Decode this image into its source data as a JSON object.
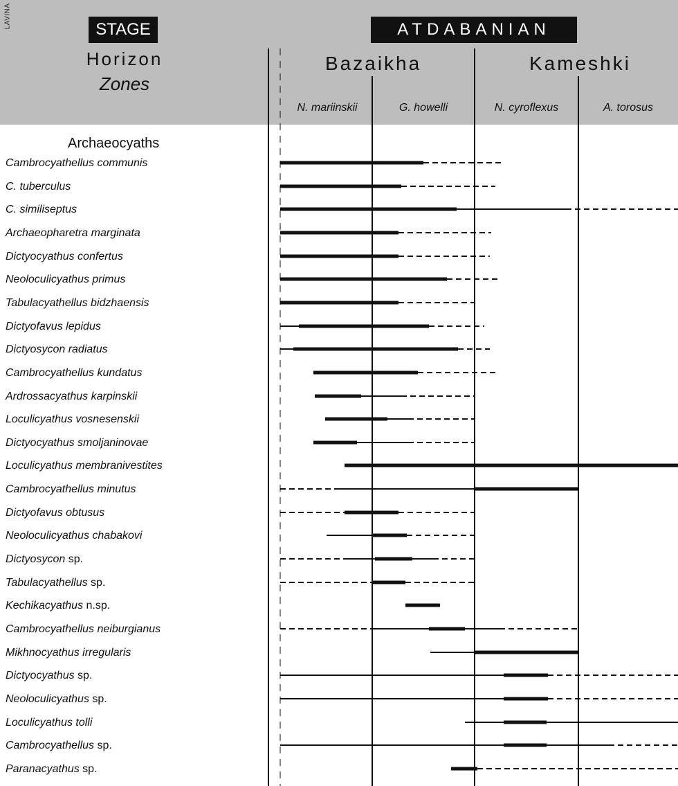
{
  "corner_label": "LAVINA",
  "stage_label": "STAGE",
  "stage_value": "ATDABANIAN",
  "horizon_label": "Horizon",
  "zones_label": "Zones",
  "horizons": [
    {
      "name": "Bazaikha"
    },
    {
      "name": "Kameshki"
    }
  ],
  "zones": [
    "N. mariinskii",
    "G. howelli",
    "N. cyroflexus",
    "A. torosus"
  ],
  "group_label": "Archaeocyaths",
  "taxa": [
    {
      "name": "Cambrocyathellus communis",
      "suffix": ""
    },
    {
      "name": "C. tuberculus",
      "suffix": ""
    },
    {
      "name": "C. similiseptus",
      "suffix": ""
    },
    {
      "name": "Archaeopharetra marginata",
      "suffix": ""
    },
    {
      "name": "Dictyocyathus confertus",
      "suffix": ""
    },
    {
      "name": "Neoloculicyathus primus",
      "suffix": ""
    },
    {
      "name": "Tabulacyathellus bidzhaensis",
      "suffix": ""
    },
    {
      "name": "Dictyofavus lepidus",
      "suffix": ""
    },
    {
      "name": "Dictyosycon radiatus",
      "suffix": ""
    },
    {
      "name": "Cambrocyathellus kundatus",
      "suffix": ""
    },
    {
      "name": "Ardrossacyathus karpinskii",
      "suffix": ""
    },
    {
      "name": "Loculicyathus vosnesenskii",
      "suffix": ""
    },
    {
      "name": "Dictyocyathus smoljaninovae",
      "suffix": ""
    },
    {
      "name": "Loculicyathus membranivestites",
      "suffix": ""
    },
    {
      "name": "Cambrocyathellus minutus",
      "suffix": ""
    },
    {
      "name": "Dictyofavus obtusus",
      "suffix": ""
    },
    {
      "name": "Neoloculicyathus chabakovi",
      "suffix": ""
    },
    {
      "name": "Dictyosycon",
      "suffix": " sp."
    },
    {
      "name": "Tabulacyathellus",
      "suffix": " sp."
    },
    {
      "name": "Kechikacyathus",
      "suffix": " n.sp."
    },
    {
      "name": "Cambrocyathellus neiburgianus",
      "suffix": ""
    },
    {
      "name": "Mikhnocyathus irregularis",
      "suffix": ""
    },
    {
      "name": "Dictyocyathus ",
      "suffix": " sp."
    },
    {
      "name": "Neoloculicyathus",
      "suffix": " sp."
    },
    {
      "name": "Loculicyathus tolli",
      "suffix": ""
    },
    {
      "name": "Cambrocyathellus",
      "suffix": " sp."
    },
    {
      "name": "Paranacyathus",
      "suffix": " sp."
    }
  ],
  "colors": {
    "header_band": "#bdbdbd",
    "ink": "#111111",
    "label_box_text": "#ffffff"
  }
}
